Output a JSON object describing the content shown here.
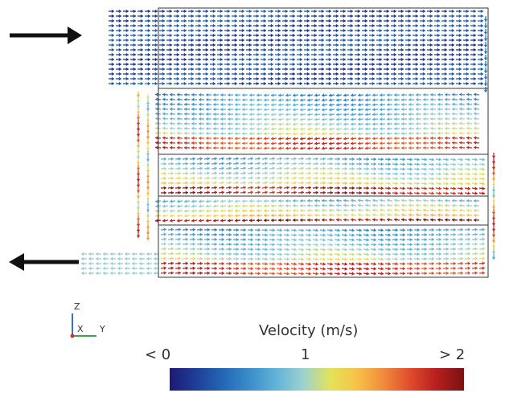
{
  "colorbar": {
    "title": "Velocity (m/s)",
    "min_label": "< 0",
    "mid_label": "1",
    "max_label": "> 2",
    "stops": [
      "#1c1a73",
      "#1f3f98",
      "#2467b5",
      "#3a8ecb",
      "#63b3d8",
      "#9dd2cf",
      "#e3e35a",
      "#f7c248",
      "#f08b3c",
      "#e04a2c",
      "#b51e1e",
      "#7a1212"
    ]
  },
  "triad": {
    "z": "Z",
    "x": "X",
    "y": "Y"
  },
  "arrows": {
    "inlet": "right",
    "outlet": "left"
  },
  "colors": {
    "frame": "#333333",
    "big_arrow": "#111111"
  }
}
